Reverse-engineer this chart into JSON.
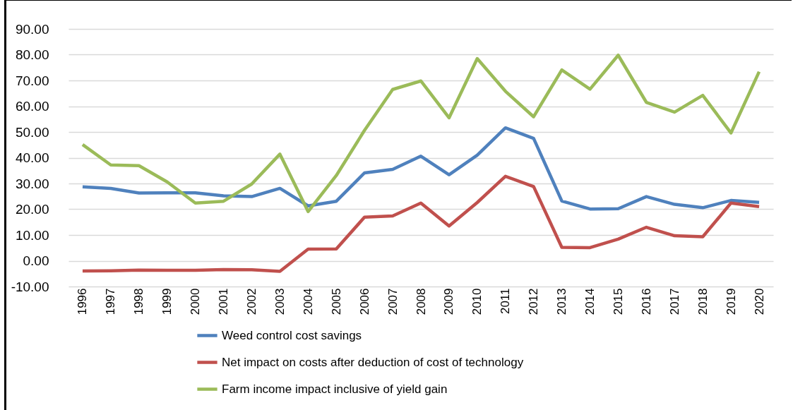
{
  "chart_data": {
    "type": "line",
    "categories": [
      "1996",
      "1997",
      "1998",
      "1999",
      "2000",
      "2001",
      "2002",
      "2003",
      "2004",
      "2005",
      "2006",
      "2007",
      "2008",
      "2009",
      "2010",
      "2011",
      "2012",
      "2013",
      "2014",
      "2015",
      "2016",
      "2017",
      "2018",
      "2019",
      "2020"
    ],
    "series": [
      {
        "name": "Weed control cost savings",
        "color": "#4f81bd",
        "values": [
          28.7,
          28.1,
          26.3,
          26.4,
          26.4,
          25.2,
          24.9,
          28.1,
          21.3,
          23.1,
          34.1,
          35.5,
          40.6,
          33.4,
          41.0,
          51.6,
          47.5,
          23.2,
          20.1,
          20.2,
          24.9,
          21.9,
          20.6,
          23.4,
          22.7
        ]
      },
      {
        "name": "Net impact on costs after deduction of cost of technology",
        "color": "#c0504d",
        "values": [
          -4.0,
          -3.9,
          -3.6,
          -3.7,
          -3.7,
          -3.4,
          -3.5,
          -4.1,
          4.5,
          4.6,
          16.9,
          17.4,
          22.4,
          13.5,
          22.6,
          32.8,
          28.8,
          5.2,
          5.1,
          8.4,
          13.0,
          9.7,
          9.3,
          22.4,
          21.0
        ]
      },
      {
        "name": "Farm income impact inclusive of yield gain",
        "color": "#9bbb59",
        "values": [
          45.1,
          37.2,
          36.9,
          30.6,
          22.4,
          23.1,
          29.8,
          41.4,
          19.1,
          33.1,
          50.6,
          66.5,
          69.8,
          55.5,
          78.5,
          65.8,
          55.9,
          74.1,
          66.6,
          79.8,
          61.5,
          57.7,
          64.2,
          49.6,
          73.4
        ]
      }
    ],
    "ylim": [
      -10,
      90
    ],
    "yticks": [
      {
        "value": -10,
        "label": "-10.00"
      },
      {
        "value": 0,
        "label": "0.00"
      },
      {
        "value": 10,
        "label": "10.00"
      },
      {
        "value": 20,
        "label": "20.00"
      },
      {
        "value": 30,
        "label": "30.00"
      },
      {
        "value": 40,
        "label": "40.00"
      },
      {
        "value": 50,
        "label": "50.00"
      },
      {
        "value": 60,
        "label": "60.00"
      },
      {
        "value": 70,
        "label": "70.00"
      },
      {
        "value": 80,
        "label": "80.00"
      },
      {
        "value": 90,
        "label": "90.00"
      }
    ],
    "grid": "y",
    "legend": "bottom",
    "marker": "none",
    "line_style": "solid"
  }
}
